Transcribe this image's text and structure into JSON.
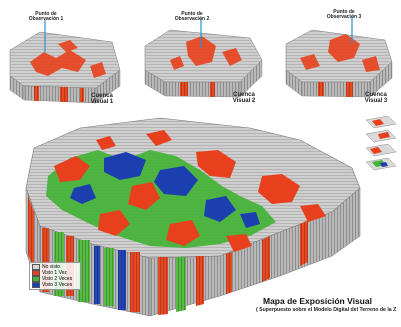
{
  "observation_points": [
    {
      "label": "Punto de\nObservación 1"
    },
    {
      "label": "Punto de\nObservación 2"
    },
    {
      "label": "Punto de\nObservación 3"
    }
  ],
  "basins": [
    {
      "label": "Cuenca\nVisual 1"
    },
    {
      "label": "Cuenca\nVisual 2"
    },
    {
      "label": "Cuenca\nVisual 3"
    }
  ],
  "legend": [
    {
      "label": "No visto",
      "color": "#d8d8d8"
    },
    {
      "label": "Visto 1 Vez",
      "color": "#e8401c"
    },
    {
      "label": "Visto 2 Veces",
      "color": "#48b33a"
    },
    {
      "label": "Visto 3 Veces",
      "color": "#1c3fb0"
    }
  ],
  "map": {
    "title": "Mapa de Exposición Visual",
    "subtitle": "( Superpuesto sobre el Modelo Digital del Terreno de la Z"
  },
  "colors": {
    "terrain": "#c9c9c9",
    "terrain_dark": "#8a8a8a",
    "seen_once": "#e8401c",
    "seen_twice": "#48b33a",
    "seen_thrice": "#1c3fb0",
    "pole": "#2a8fd6"
  }
}
